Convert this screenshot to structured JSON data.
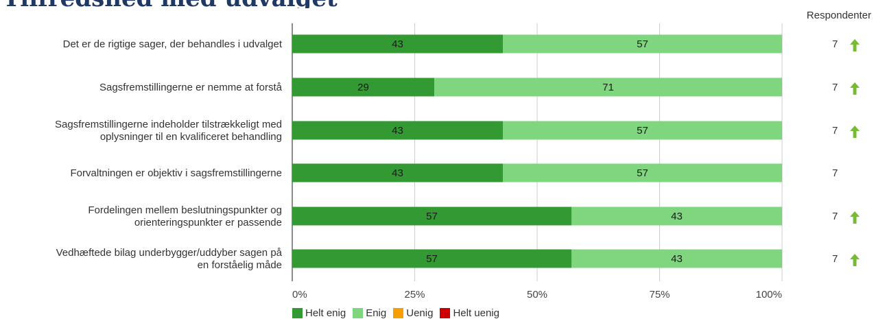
{
  "title": "Tilfredshed med udvalget",
  "respondents_header": "Respondenter",
  "colors": {
    "helt_enig": "#339933",
    "enig": "#7fd67f",
    "uenig": "#f5a000",
    "helt_uenig": "#cc0000",
    "trend_up": "#77bb33"
  },
  "legend": [
    {
      "label": "Helt enig",
      "color": "#339933",
      "icon": "legend-swatch"
    },
    {
      "label": "Enig",
      "color": "#7fd67f",
      "icon": "legend-swatch"
    },
    {
      "label": "Uenig",
      "color": "#f5a000",
      "icon": "legend-swatch"
    },
    {
      "label": "Helt uenig",
      "color": "#cc0000",
      "icon": "legend-swatch"
    }
  ],
  "chart_data": {
    "type": "bar",
    "orientation": "horizontal",
    "stacked": true,
    "xlim": [
      0,
      100
    ],
    "xticks": [
      "0%",
      "25%",
      "50%",
      "75%",
      "100%"
    ],
    "grid": true,
    "legend_position": "bottom",
    "categories": [
      "Det er de rigtige sager, der behandles i udvalget",
      "Sagsfremstillingerne er nemme at forstå",
      "Sagsfremstillingerne indeholder tilstrækkeligt med oplysninger til en kvalificeret behandling",
      "Forvaltningen er objektiv i sagsfremstillingerne",
      "Fordelingen mellem beslutningspunkter og orienteringspunkter er passende",
      "Vedhæftede bilag underbygger/uddyber sagen på en forståelig måde"
    ],
    "category_lines": [
      [
        "Det er de rigtige sager, der behandles i udvalget"
      ],
      [
        "Sagsfremstillingerne er nemme at forstå"
      ],
      [
        "Sagsfremstillingerne indeholder tilstrækkeligt med",
        "oplysninger til en kvalificeret behandling"
      ],
      [
        "Forvaltningen er objektiv i sagsfremstillingerne"
      ],
      [
        "Fordelingen mellem beslutningspunkter og",
        "orienteringspunkter er passende"
      ],
      [
        "Vedhæftede bilag underbygger/uddyber sagen på",
        "en forståelig måde"
      ]
    ],
    "series": [
      {
        "name": "Helt enig",
        "color": "#339933",
        "values": [
          43,
          29,
          43,
          43,
          57,
          57
        ]
      },
      {
        "name": "Enig",
        "color": "#7fd67f",
        "values": [
          57,
          71,
          57,
          57,
          43,
          43
        ]
      },
      {
        "name": "Uenig",
        "color": "#f5a000",
        "values": [
          0,
          0,
          0,
          0,
          0,
          0
        ]
      },
      {
        "name": "Helt uenig",
        "color": "#cc0000",
        "values": [
          0,
          0,
          0,
          0,
          0,
          0
        ]
      }
    ],
    "respondents": [
      7,
      7,
      7,
      7,
      7,
      7
    ],
    "trend": [
      "up",
      "up",
      "up",
      "none",
      "up",
      "up"
    ]
  }
}
